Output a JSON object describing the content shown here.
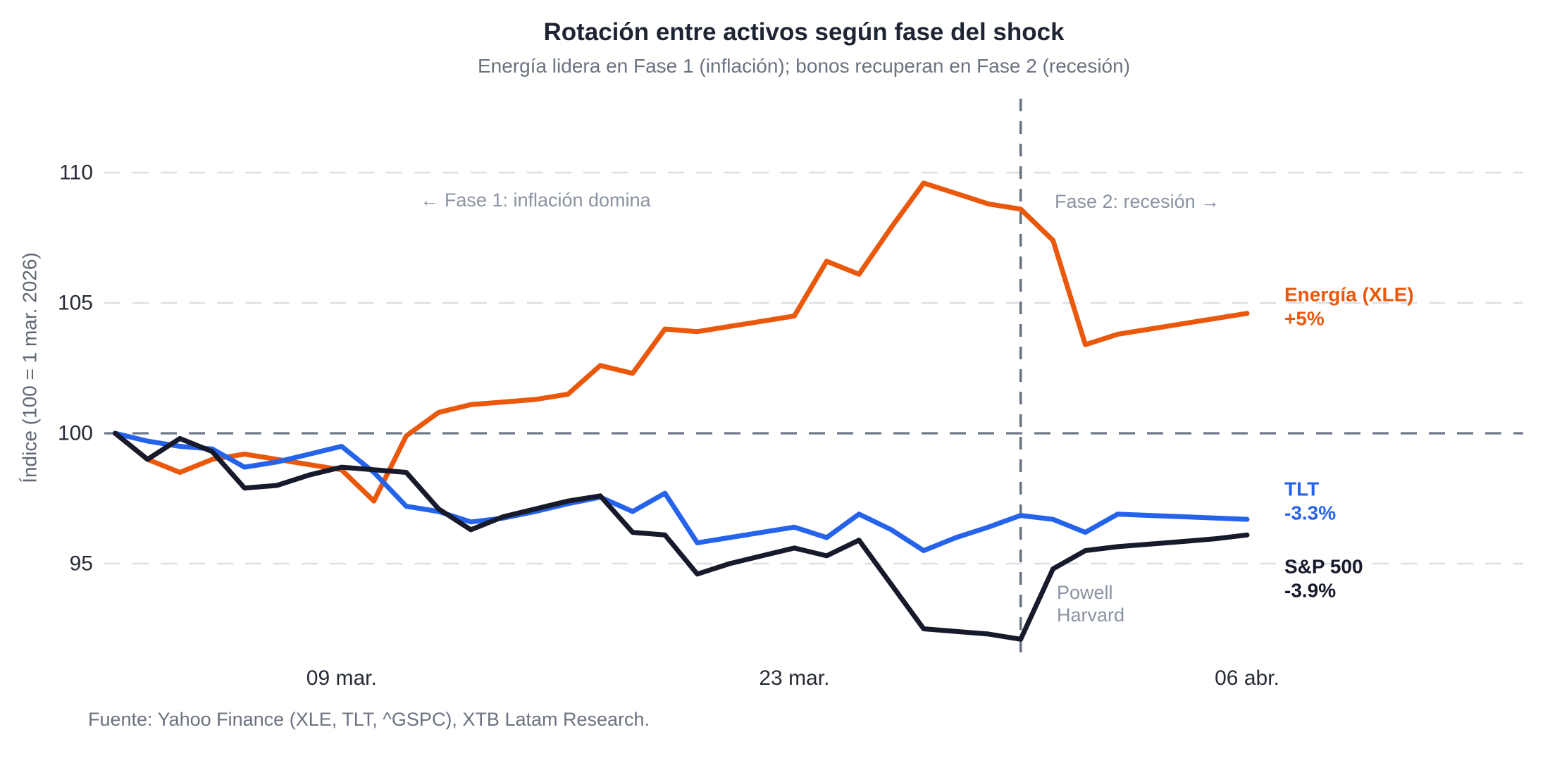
{
  "title": "Rotación entre activos según fase del shock",
  "subtitle": "Energía lidera en Fase 1 (inflación); bonos recuperan en Fase 2 (recesión)",
  "footer": "Fuente: Yahoo Finance (XLE, TLT, ^GSPC), XTB Latam Research.",
  "colors": {
    "energia": "#ea580c",
    "tlt": "#2563eb",
    "sp500": "#171a2b",
    "grid_light": "#dadfe6",
    "grid_baseline": "#6e7888",
    "event_line": "#67707e",
    "annotation_text": "#8a93a2",
    "tick_text": "#262b36",
    "axis_label_text": "#5f6774"
  },
  "chart_data": {
    "type": "line",
    "title": "Rotación entre activos según fase del shock",
    "subtitle": "Energía lidera en Fase 1 (inflación); bonos recuperan en Fase 2 (recesión)",
    "ylabel": "Índice (100 = 1 mar. 2026)",
    "ylim": [
      91.3,
      111.8
    ],
    "yticks": [
      95,
      100,
      105,
      110
    ],
    "baseline_value": 100,
    "grid": "horizontal-dashed",
    "legend_position": "right-of-lines",
    "x_count": 36,
    "xticks": [
      {
        "day_index": 7,
        "label": "09 mar."
      },
      {
        "day_index": 21,
        "label": "23 mar."
      },
      {
        "day_index": 35,
        "label": "06 abr."
      }
    ],
    "annotations": {
      "phase1": {
        "text": "← Fase 1: inflación domina"
      },
      "phase2": {
        "text": "Fase 2: recesión →"
      },
      "event": {
        "day_index": 28,
        "line_1": "Powell",
        "line_2": "Harvard"
      }
    },
    "series": [
      {
        "key": "energia",
        "name": "Energía (XLE)",
        "pct_label": "+5%",
        "color": "#ea580c",
        "values": [
          100,
          99.0,
          98.5,
          99.0,
          99.2,
          99.0,
          98.8,
          98.6,
          97.4,
          99.9,
          100.8,
          101.1,
          101.2,
          101.3,
          101.5,
          102.6,
          102.3,
          104.0,
          103.9,
          104.1,
          104.3,
          104.5,
          106.6,
          106.1,
          107.9,
          109.6,
          109.2,
          108.8,
          108.6,
          107.4,
          103.4,
          103.8,
          104.0,
          104.2,
          104.4,
          104.6
        ]
      },
      {
        "key": "tlt",
        "name": "TLT",
        "pct_label": "-3.3%",
        "color": "#2563eb",
        "values": [
          100,
          99.7,
          99.5,
          99.4,
          98.7,
          98.9,
          99.2,
          99.5,
          98.5,
          97.2,
          97.0,
          96.6,
          96.75,
          97.0,
          97.3,
          97.55,
          97.0,
          97.7,
          95.8,
          96.0,
          96.2,
          96.4,
          96.0,
          96.9,
          96.3,
          95.5,
          96.0,
          96.4,
          96.85,
          96.7,
          96.2,
          96.9,
          96.85,
          96.8,
          96.75,
          96.7
        ]
      },
      {
        "key": "sp500",
        "name": "S&P 500",
        "pct_label": "-3.9%",
        "color": "#171a2b",
        "values": [
          100,
          99.0,
          99.8,
          99.3,
          97.9,
          98.0,
          98.4,
          98.7,
          98.6,
          98.5,
          97.1,
          96.3,
          96.8,
          97.1,
          97.4,
          97.6,
          96.2,
          96.1,
          94.6,
          95.0,
          95.3,
          95.6,
          95.3,
          95.9,
          94.2,
          92.5,
          92.4,
          92.3,
          92.1,
          94.8,
          95.5,
          95.65,
          95.75,
          95.85,
          95.95,
          96.1
        ]
      }
    ]
  }
}
